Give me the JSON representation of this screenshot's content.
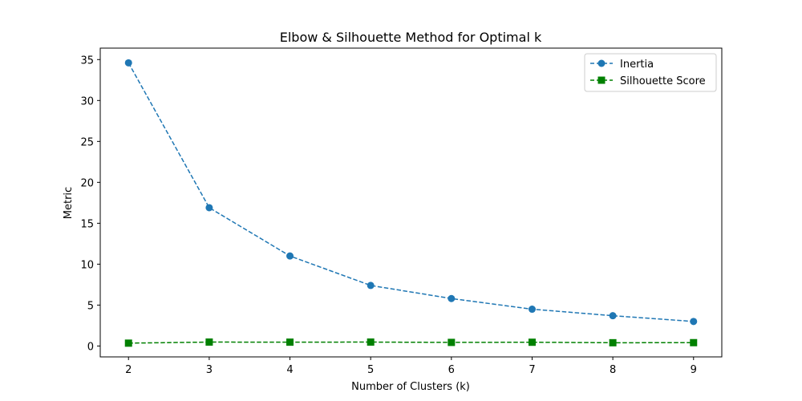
{
  "chart_data": {
    "type": "line",
    "title": "Elbow & Silhouette Method for Optimal k",
    "xlabel": "Number of Clusters (k)",
    "ylabel": "Metric",
    "x": [
      2,
      3,
      4,
      5,
      6,
      7,
      8,
      9
    ],
    "xlim": [
      1.65,
      9.35
    ],
    "ylim": [
      -1.33,
      36.4
    ],
    "yticks": [
      0,
      5,
      10,
      15,
      20,
      25,
      30,
      35
    ],
    "grid": false,
    "legend_position": "top-right",
    "series": [
      {
        "name": "Inertia",
        "values": [
          34.6,
          16.9,
          11.0,
          7.4,
          5.8,
          4.5,
          3.7,
          3.0
        ],
        "color": "#1f77b4",
        "marker": "circle",
        "line_style": "dashed"
      },
      {
        "name": "Silhouette Score",
        "values": [
          0.35,
          0.48,
          0.47,
          0.48,
          0.44,
          0.46,
          0.4,
          0.41
        ],
        "color": "#008000",
        "marker": "square",
        "line_style": "dashed"
      }
    ]
  }
}
